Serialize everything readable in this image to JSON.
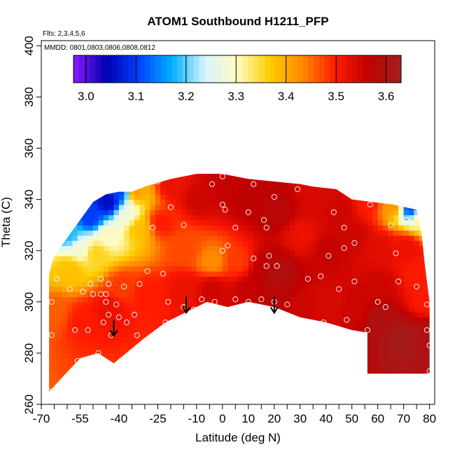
{
  "chart_data": {
    "type": "heatmap",
    "title": "ATOM1 Southbound H1211_PFP",
    "annotations": [
      "Flts: 2,3,4,5,6",
      "MMDD: 0801,0803,0806,0808,0812"
    ],
    "xlabel": "Latitude (deg N)",
    "ylabel": "Theta (C)",
    "xlim": [
      -70,
      82
    ],
    "ylim": [
      260,
      402
    ],
    "x_ticks": [
      -70,
      -55,
      -40,
      -25,
      -10,
      0,
      10,
      20,
      30,
      40,
      50,
      60,
      70,
      80
    ],
    "x_ticklabels": [
      "-70",
      "-55",
      "-40",
      "-25",
      "-10",
      "0",
      "10",
      "20",
      "30",
      "40",
      "50",
      "60",
      "70",
      "80"
    ],
    "x_minor_ticks": [
      -65,
      -60,
      -50,
      -45,
      -35,
      -30,
      -20,
      -15,
      -5,
      5,
      15,
      25,
      35,
      45,
      55,
      65,
      75
    ],
    "y_ticks": [
      260,
      280,
      300,
      320,
      340,
      360,
      380,
      400
    ],
    "y_ticklabels": [
      "260",
      "280",
      "300",
      "320",
      "340",
      "360",
      "380",
      "400"
    ],
    "colorbar": {
      "range": [
        2.975,
        3.63
      ],
      "ticks": [
        3.0,
        3.1,
        3.2,
        3.3,
        3.4,
        3.5,
        3.6
      ],
      "ticklabels": [
        "3.0",
        "3.1",
        "3.2",
        "3.3",
        "3.4",
        "3.5",
        "3.6"
      ],
      "colors": [
        "#8b1aff",
        "#0000b0",
        "#0040ff",
        "#00b0ff",
        "#d8f2ff",
        "#fffcc0",
        "#ffcc00",
        "#ff8800",
        "#ff1a00",
        "#c00000",
        "#a02020"
      ]
    },
    "arrows_x": [
      -42,
      -14,
      20
    ],
    "fill_boundary": [
      [
        -67,
        265
      ],
      [
        -55,
        278
      ],
      [
        -48,
        280
      ],
      [
        -42,
        276
      ],
      [
        -30,
        286
      ],
      [
        -22,
        292
      ],
      [
        -10,
        298
      ],
      [
        -6,
        300
      ],
      [
        2,
        298
      ],
      [
        10,
        300
      ],
      [
        20,
        298
      ],
      [
        30,
        294
      ],
      [
        40,
        292
      ],
      [
        50,
        289
      ],
      [
        56,
        288
      ],
      [
        56,
        272
      ],
      [
        80,
        272
      ],
      [
        80,
        300
      ],
      [
        79,
        308
      ],
      [
        78,
        316
      ],
      [
        77,
        326
      ],
      [
        75,
        336
      ],
      [
        66,
        338
      ],
      [
        58,
        339
      ],
      [
        50,
        340
      ],
      [
        44,
        344
      ],
      [
        35,
        345
      ],
      [
        30,
        346
      ],
      [
        20,
        347
      ],
      [
        10,
        348
      ],
      [
        0,
        350
      ],
      [
        -10,
        350
      ],
      [
        -20,
        348
      ],
      [
        -30,
        345
      ],
      [
        -35,
        343
      ],
      [
        -40,
        343
      ],
      [
        -45,
        342
      ],
      [
        -50,
        339
      ],
      [
        -55,
        332
      ],
      [
        -60,
        325
      ],
      [
        -65,
        318
      ],
      [
        -67,
        311
      ]
    ],
    "value_field": [
      {
        "x": -66,
        "y": 295,
        "v": 3.46
      },
      {
        "x": -55,
        "y": 292,
        "v": 3.5
      },
      {
        "x": -45,
        "y": 296,
        "v": 3.52
      },
      {
        "x": -40,
        "y": 305,
        "v": 3.48
      },
      {
        "x": -30,
        "y": 302,
        "v": 3.5
      },
      {
        "x": -15,
        "y": 304,
        "v": 3.52
      },
      {
        "x": -5,
        "y": 304,
        "v": 3.55
      },
      {
        "x": 10,
        "y": 304,
        "v": 3.56
      },
      {
        "x": 20,
        "y": 302,
        "v": 3.58
      },
      {
        "x": 30,
        "y": 298,
        "v": 3.55
      },
      {
        "x": 40,
        "y": 298,
        "v": 3.54
      },
      {
        "x": 50,
        "y": 296,
        "v": 3.55
      },
      {
        "x": 60,
        "y": 292,
        "v": 3.6
      },
      {
        "x": 70,
        "y": 284,
        "v": 3.62
      },
      {
        "x": 77,
        "y": 285,
        "v": 3.6
      },
      {
        "x": 78,
        "y": 300,
        "v": 3.5
      },
      {
        "x": -60,
        "y": 312,
        "v": 3.38
      },
      {
        "x": -56,
        "y": 320,
        "v": 3.28
      },
      {
        "x": -60,
        "y": 325,
        "v": 3.18
      },
      {
        "x": -52,
        "y": 332,
        "v": 3.1
      },
      {
        "x": -45,
        "y": 338,
        "v": 3.05
      },
      {
        "x": -40,
        "y": 342,
        "v": 3.1
      },
      {
        "x": -38,
        "y": 333,
        "v": 3.28
      },
      {
        "x": -33,
        "y": 328,
        "v": 3.38
      },
      {
        "x": -45,
        "y": 325,
        "v": 3.3
      },
      {
        "x": -50,
        "y": 318,
        "v": 3.36
      },
      {
        "x": -35,
        "y": 342,
        "v": 3.42
      },
      {
        "x": -25,
        "y": 330,
        "v": 3.5
      },
      {
        "x": -15,
        "y": 320,
        "v": 3.47
      },
      {
        "x": -5,
        "y": 315,
        "v": 3.43
      },
      {
        "x": 5,
        "y": 315,
        "v": 3.48
      },
      {
        "x": 15,
        "y": 312,
        "v": 3.57
      },
      {
        "x": 20,
        "y": 310,
        "v": 3.6
      },
      {
        "x": -20,
        "y": 345,
        "v": 3.52
      },
      {
        "x": -10,
        "y": 340,
        "v": 3.55
      },
      {
        "x": 0,
        "y": 345,
        "v": 3.56
      },
      {
        "x": 10,
        "y": 340,
        "v": 3.57
      },
      {
        "x": 20,
        "y": 335,
        "v": 3.58
      },
      {
        "x": 30,
        "y": 325,
        "v": 3.52
      },
      {
        "x": 40,
        "y": 320,
        "v": 3.56
      },
      {
        "x": 50,
        "y": 325,
        "v": 3.55
      },
      {
        "x": 60,
        "y": 320,
        "v": 3.53
      },
      {
        "x": 70,
        "y": 320,
        "v": 3.52
      },
      {
        "x": 75,
        "y": 310,
        "v": 3.5
      },
      {
        "x": 60,
        "y": 305,
        "v": 3.55
      },
      {
        "x": 45,
        "y": 335,
        "v": 3.55
      },
      {
        "x": 55,
        "y": 338,
        "v": 3.5
      },
      {
        "x": 65,
        "y": 337,
        "v": 3.42
      },
      {
        "x": 72,
        "y": 336,
        "v": 3.1
      },
      {
        "x": 76,
        "y": 332,
        "v": 3.32
      },
      {
        "x": 35,
        "y": 340,
        "v": 3.54
      }
    ],
    "samples": [
      [
        -67,
        265
      ],
      [
        -66,
        287
      ],
      [
        -66,
        300
      ],
      [
        -64,
        309
      ],
      [
        -59,
        305
      ],
      [
        -57,
        289
      ],
      [
        -56,
        277
      ],
      [
        -54,
        304
      ],
      [
        -52,
        289
      ],
      [
        -51,
        307
      ],
      [
        -50,
        303
      ],
      [
        -48,
        280
      ],
      [
        -47,
        303
      ],
      [
        -47,
        309
      ],
      [
        -46,
        292
      ],
      [
        -45,
        300
      ],
      [
        -45,
        303
      ],
      [
        -44,
        307
      ],
      [
        -44,
        295
      ],
      [
        -43,
        287
      ],
      [
        -41,
        299
      ],
      [
        -40,
        294
      ],
      [
        -38,
        306
      ],
      [
        -37,
        292
      ],
      [
        -34,
        295
      ],
      [
        -33,
        287
      ],
      [
        -32,
        307
      ],
      [
        -29,
        312
      ],
      [
        -27,
        329
      ],
      [
        -25,
        347
      ],
      [
        -23,
        311
      ],
      [
        -22,
        292
      ],
      [
        -21,
        300
      ],
      [
        -20,
        337
      ],
      [
        -15,
        298
      ],
      [
        -15,
        330
      ],
      [
        -11,
        297
      ],
      [
        -8,
        301
      ],
      [
        -4,
        346
      ],
      [
        -3,
        300
      ],
      [
        0,
        338
      ],
      [
        0,
        349
      ],
      [
        0,
        320
      ],
      [
        1,
        336
      ],
      [
        2,
        322
      ],
      [
        5,
        301
      ],
      [
        5,
        329
      ],
      [
        10,
        335
      ],
      [
        10,
        300
      ],
      [
        12,
        317
      ],
      [
        12,
        346
      ],
      [
        15,
        301
      ],
      [
        16,
        332
      ],
      [
        17,
        314
      ],
      [
        17,
        329
      ],
      [
        18,
        318
      ],
      [
        20,
        300
      ],
      [
        20,
        341
      ],
      [
        21,
        314
      ],
      [
        25,
        299
      ],
      [
        29,
        344
      ],
      [
        33,
        309
      ],
      [
        38,
        310
      ],
      [
        39,
        292
      ],
      [
        41,
        318
      ],
      [
        43,
        335
      ],
      [
        45,
        305
      ],
      [
        47,
        329
      ],
      [
        47,
        321
      ],
      [
        48,
        293
      ],
      [
        51,
        308
      ],
      [
        51,
        323
      ],
      [
        56,
        289
      ],
      [
        57,
        338
      ],
      [
        60,
        300
      ],
      [
        63,
        298
      ],
      [
        65,
        330
      ],
      [
        67,
        319
      ],
      [
        68,
        308
      ],
      [
        71,
        332
      ],
      [
        75,
        306
      ],
      [
        77,
        336
      ],
      [
        79,
        299
      ],
      [
        79,
        289
      ],
      [
        80,
        273
      ],
      [
        80,
        283
      ]
    ]
  }
}
